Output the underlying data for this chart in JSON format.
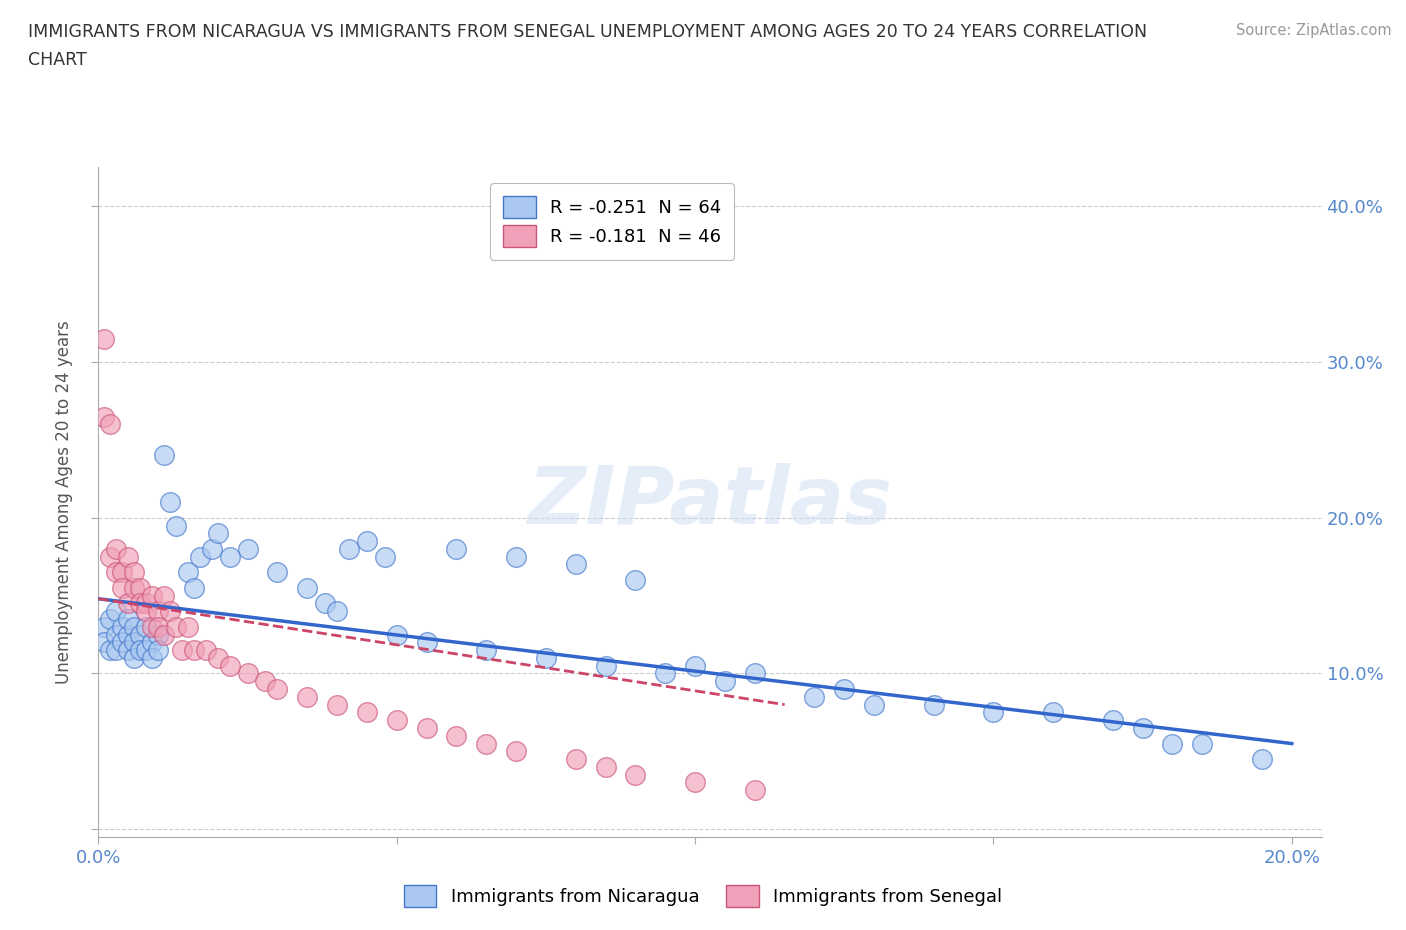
{
  "title_line1": "IMMIGRANTS FROM NICARAGUA VS IMMIGRANTS FROM SENEGAL UNEMPLOYMENT AMONG AGES 20 TO 24 YEARS CORRELATION",
  "title_line2": "CHART",
  "source": "Source: ZipAtlas.com",
  "ylabel": "Unemployment Among Ages 20 to 24 years",
  "xlim": [
    0.0,
    0.205
  ],
  "ylim": [
    -0.005,
    0.425
  ],
  "xticks": [
    0.0,
    0.05,
    0.1,
    0.15,
    0.2
  ],
  "yticks": [
    0.0,
    0.1,
    0.2,
    0.3,
    0.4
  ],
  "xtick_labels": [
    "0.0%",
    "",
    "",
    "",
    "20.0%"
  ],
  "ytick_labels_right": [
    "",
    "10.0%",
    "20.0%",
    "30.0%",
    "40.0%"
  ],
  "nicaragua_color": "#aac8f0",
  "senegal_color": "#f0a0b8",
  "nicaragua_edge_color": "#4477cc",
  "senegal_edge_color": "#cc5577",
  "nicaragua_line_color": "#3366cc",
  "senegal_line_color": "#cc4466",
  "nicaragua_R": -0.251,
  "nicaragua_N": 64,
  "senegal_R": -0.181,
  "senegal_N": 46,
  "watermark": "ZIPatlas",
  "nicaragua_x": [
    0.001,
    0.001,
    0.002,
    0.002,
    0.003,
    0.003,
    0.003,
    0.004,
    0.004,
    0.005,
    0.005,
    0.005,
    0.006,
    0.006,
    0.006,
    0.007,
    0.007,
    0.008,
    0.008,
    0.009,
    0.009,
    0.01,
    0.01,
    0.011,
    0.012,
    0.013,
    0.015,
    0.016,
    0.017,
    0.019,
    0.02,
    0.022,
    0.025,
    0.03,
    0.035,
    0.038,
    0.04,
    0.042,
    0.045,
    0.048,
    0.05,
    0.055,
    0.06,
    0.065,
    0.07,
    0.075,
    0.08,
    0.085,
    0.09,
    0.095,
    0.1,
    0.105,
    0.11,
    0.12,
    0.125,
    0.13,
    0.14,
    0.15,
    0.16,
    0.17,
    0.175,
    0.18,
    0.185,
    0.195
  ],
  "nicaragua_y": [
    0.13,
    0.12,
    0.135,
    0.115,
    0.14,
    0.125,
    0.115,
    0.13,
    0.12,
    0.125,
    0.135,
    0.115,
    0.13,
    0.12,
    0.11,
    0.125,
    0.115,
    0.13,
    0.115,
    0.12,
    0.11,
    0.125,
    0.115,
    0.24,
    0.21,
    0.195,
    0.165,
    0.155,
    0.175,
    0.18,
    0.19,
    0.175,
    0.18,
    0.165,
    0.155,
    0.145,
    0.14,
    0.18,
    0.185,
    0.175,
    0.125,
    0.12,
    0.18,
    0.115,
    0.175,
    0.11,
    0.17,
    0.105,
    0.16,
    0.1,
    0.105,
    0.095,
    0.1,
    0.085,
    0.09,
    0.08,
    0.08,
    0.075,
    0.075,
    0.07,
    0.065,
    0.055,
    0.055,
    0.045
  ],
  "senegal_x": [
    0.001,
    0.001,
    0.002,
    0.002,
    0.003,
    0.003,
    0.004,
    0.004,
    0.005,
    0.005,
    0.006,
    0.006,
    0.007,
    0.007,
    0.008,
    0.008,
    0.009,
    0.009,
    0.01,
    0.01,
    0.011,
    0.011,
    0.012,
    0.013,
    0.014,
    0.015,
    0.016,
    0.018,
    0.02,
    0.022,
    0.025,
    0.028,
    0.03,
    0.035,
    0.04,
    0.045,
    0.05,
    0.055,
    0.06,
    0.065,
    0.07,
    0.08,
    0.085,
    0.09,
    0.1,
    0.11
  ],
  "senegal_y": [
    0.315,
    0.265,
    0.175,
    0.26,
    0.18,
    0.165,
    0.165,
    0.155,
    0.175,
    0.145,
    0.155,
    0.165,
    0.155,
    0.145,
    0.145,
    0.14,
    0.13,
    0.15,
    0.14,
    0.13,
    0.15,
    0.125,
    0.14,
    0.13,
    0.115,
    0.13,
    0.115,
    0.115,
    0.11,
    0.105,
    0.1,
    0.095,
    0.09,
    0.085,
    0.08,
    0.075,
    0.07,
    0.065,
    0.06,
    0.055,
    0.05,
    0.045,
    0.04,
    0.035,
    0.03,
    0.025
  ],
  "nic_trendline_x": [
    0.0,
    0.2
  ],
  "nic_trendline_y": [
    0.148,
    0.055
  ],
  "sen_trendline_x": [
    0.0,
    0.115
  ],
  "sen_trendline_y": [
    0.148,
    0.08
  ]
}
